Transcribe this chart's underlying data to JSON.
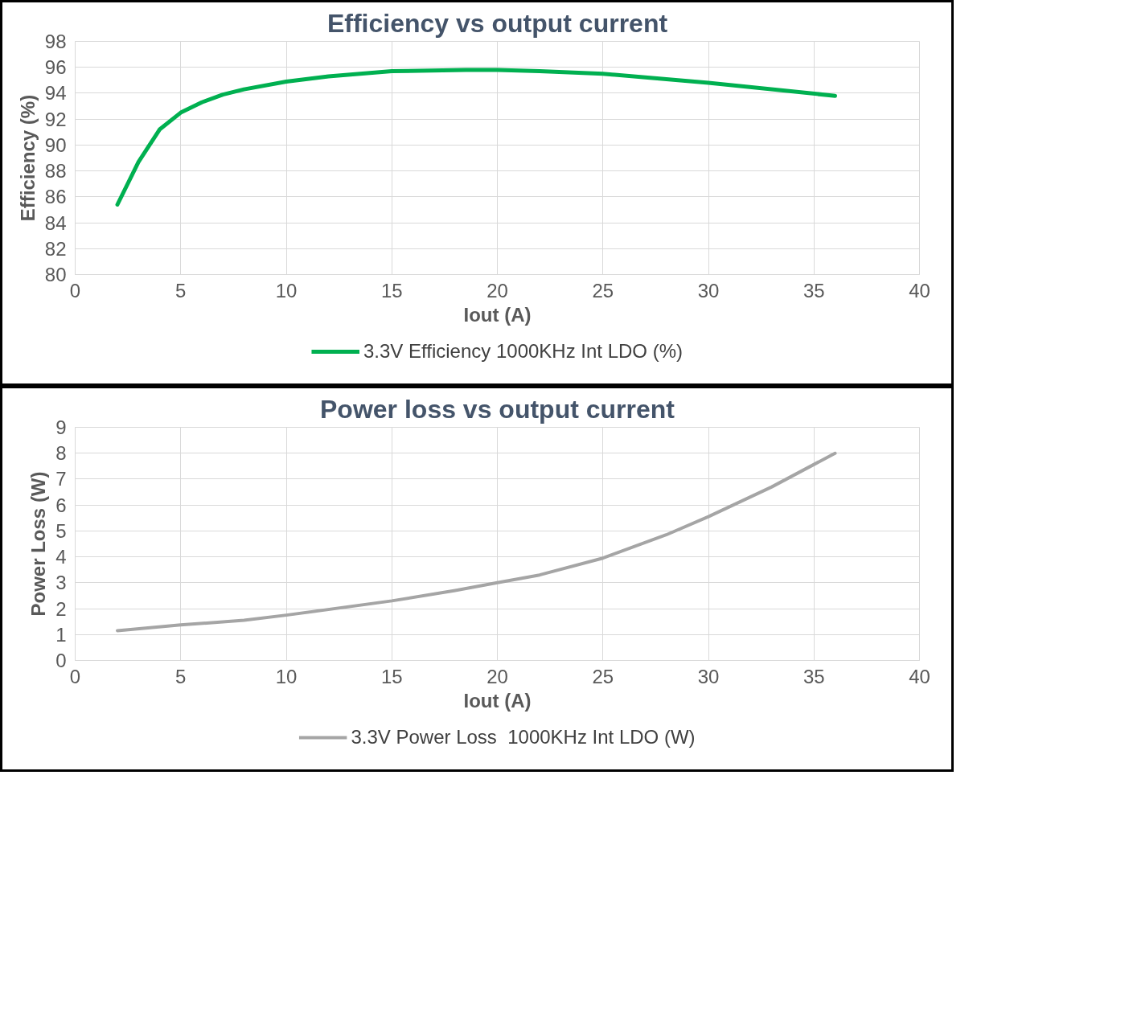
{
  "chart_data": [
    {
      "type": "line",
      "title": "Efficiency vs output current",
      "xlabel": "Iout (A)",
      "ylabel": "Efficiency (%)",
      "x": [
        2,
        3,
        4,
        5,
        6,
        7,
        8,
        10,
        12,
        15,
        18.5,
        20,
        22,
        25,
        30,
        36
      ],
      "series": [
        {
          "name": "3.3V Efficiency 1000KHz Int LDO (%)",
          "color": "#00b050",
          "values": [
            85.4,
            88.7,
            91.2,
            92.5,
            93.3,
            93.9,
            94.3,
            94.9,
            95.3,
            95.7,
            95.8,
            95.8,
            95.7,
            95.5,
            94.8,
            93.8
          ]
        }
      ],
      "xlim": [
        0,
        40
      ],
      "ylim": [
        80,
        98
      ],
      "xticks": [
        0,
        5,
        10,
        15,
        20,
        25,
        30,
        35,
        40
      ],
      "yticks": [
        80,
        82,
        84,
        86,
        88,
        90,
        92,
        94,
        96,
        98
      ],
      "grid": true,
      "legend": "bottom"
    },
    {
      "type": "line",
      "title": "Power loss vs output current",
      "xlabel": "Iout (A)",
      "ylabel": "Power Loss (W)",
      "x": [
        2,
        5,
        8,
        10,
        15,
        18,
        20,
        22,
        25,
        28,
        30,
        33,
        36
      ],
      "series": [
        {
          "name": "3.3V Power Loss  1000KHz Int LDO (W)",
          "color": "#a5a5a5",
          "values": [
            1.15,
            1.37,
            1.55,
            1.75,
            2.3,
            2.7,
            3.0,
            3.3,
            3.95,
            4.85,
            5.55,
            6.7,
            8.0
          ]
        }
      ],
      "xlim": [
        0,
        40
      ],
      "ylim": [
        0,
        9
      ],
      "xticks": [
        0,
        5,
        10,
        15,
        20,
        25,
        30,
        35,
        40
      ],
      "yticks": [
        0,
        1,
        2,
        3,
        4,
        5,
        6,
        7,
        8,
        9
      ],
      "grid": true,
      "legend": "bottom"
    }
  ]
}
